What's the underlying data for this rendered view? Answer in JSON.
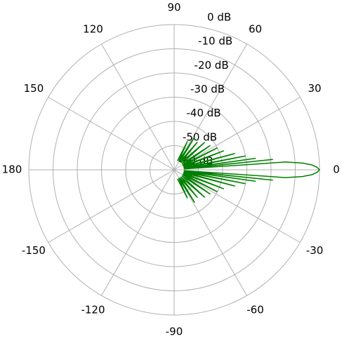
{
  "chart_data": {
    "type": "polar",
    "x": [
      -70,
      -65,
      -62,
      -58,
      -55,
      -50,
      -47,
      -42,
      -38,
      -34,
      -30,
      -27,
      -24,
      -21,
      -18,
      -15,
      -13,
      -11,
      -9,
      -8,
      -7,
      -6,
      -5,
      -4,
      -3,
      -2,
      -1,
      0,
      1,
      2,
      3,
      4,
      5,
      6,
      7,
      8,
      9,
      11,
      13,
      15,
      18,
      21,
      24,
      27,
      30,
      34,
      38,
      42,
      47,
      50,
      55,
      58,
      62,
      65,
      70
    ],
    "series": [
      {
        "color": "#008000",
        "values": [
          -56,
          -47,
          -56,
          -44,
          -56,
          -45,
          -56,
          -43,
          -56,
          -42,
          -56,
          -40,
          -56,
          -38,
          -56,
          -34,
          -56,
          -30,
          -56,
          -26,
          -56,
          -19,
          -56,
          -14,
          -7,
          -3,
          -1,
          0,
          -1,
          -3,
          -7,
          -14,
          -56,
          -19,
          -56,
          -26,
          -56,
          -30,
          -56,
          -34,
          -56,
          -38,
          -56,
          -40,
          -56,
          -42,
          -56,
          -43,
          -56,
          -45,
          -56,
          -44,
          -56,
          -47,
          -56
        ]
      }
    ],
    "thetaticks": [
      0,
      30,
      60,
      90,
      120,
      150,
      180,
      -150,
      -120,
      -90,
      -60,
      -30
    ],
    "rlim": [
      -60,
      0
    ],
    "rticks": [
      {
        "value": 0,
        "label": "0 dB"
      },
      {
        "value": -10,
        "label": "-10 dB"
      },
      {
        "value": -20,
        "label": "-20 dB"
      },
      {
        "value": -30,
        "label": "-30 dB"
      },
      {
        "value": -40,
        "label": "-40 dB"
      },
      {
        "value": -50,
        "label": "-50 dB"
      },
      {
        "value": -60,
        "label": "-60 dB"
      }
    ],
    "grid": true
  }
}
